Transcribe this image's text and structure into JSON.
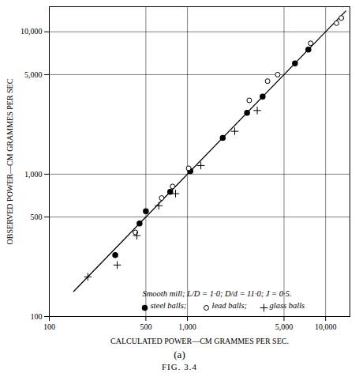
{
  "chart_data": {
    "type": "scatter",
    "x_label": "CALCULATED POWER—CM GRAMMES PER SEC.",
    "y_label": "OBSERVED POWER—CM GRAMMES PER SEC",
    "log": true,
    "grid": true,
    "xlim": [
      100,
      15000
    ],
    "ylim": [
      100,
      15000
    ],
    "xticks": [
      100,
      500,
      {
        "value": 1000,
        "label": "1,000"
      },
      {
        "value": 5000,
        "label": "5,000"
      },
      {
        "value": 10000,
        "label": "10,000"
      }
    ],
    "yticks": [
      100,
      500,
      {
        "value": 1000,
        "label": "1,000"
      },
      {
        "value": 5000,
        "label": "5,000"
      },
      {
        "value": 10000,
        "label": "10,000"
      }
    ],
    "annotations": [
      "Smooth mill; L/D = 1·0; D/d = 11·0; J = 0·5."
    ],
    "caption": "(a)",
    "figure_label": "FIG. 3.4",
    "series": [
      {
        "type": "line",
        "color": "#000000",
        "line_style": "solid",
        "x": [
          150,
          14000
        ],
        "y": [
          150,
          14000
        ]
      },
      {
        "name": "steel balls;",
        "type": "scatter",
        "marker": "filled_circle",
        "color": "#000000",
        "x": [
          300,
          450,
          500,
          750,
          1050,
          1800,
          2700,
          3500,
          6000,
          7500
        ],
        "y": [
          270,
          450,
          550,
          750,
          1050,
          1800,
          2700,
          3500,
          6000,
          7500
        ]
      },
      {
        "name": "lead balls;",
        "type": "scatter",
        "marker": "open_circle",
        "color": "#000000",
        "x": [
          420,
          650,
          780,
          1020,
          2800,
          3800,
          4500,
          7800,
          12000,
          13000
        ],
        "y": [
          390,
          680,
          820,
          1100,
          3300,
          4500,
          5000,
          8300,
          11500,
          12500
        ]
      },
      {
        "name": "glass balls",
        "type": "scatter",
        "marker": "plus",
        "color": "#000000",
        "x": [
          190,
          310,
          430,
          620,
          820,
          1250,
          2200,
          3200
        ],
        "y": [
          190,
          230,
          370,
          600,
          730,
          1150,
          2000,
          2800
        ]
      }
    ]
  }
}
